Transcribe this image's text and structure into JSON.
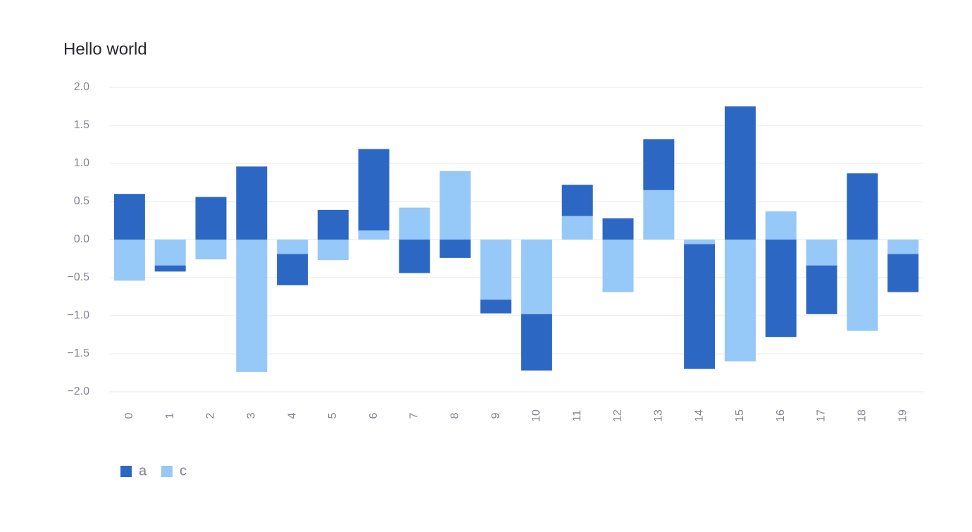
{
  "chart_data": {
    "type": "stacked-bar",
    "title": "Hello world",
    "categories": [
      "0",
      "1",
      "2",
      "3",
      "4",
      "5",
      "6",
      "7",
      "8",
      "9",
      "10",
      "11",
      "12",
      "13",
      "14",
      "15",
      "16",
      "17",
      "18",
      "19"
    ],
    "series": [
      {
        "name": "a",
        "color": "#2c67c4",
        "values": [
          0.6,
          -0.08,
          0.56,
          0.96,
          -0.41,
          0.39,
          1.07,
          -0.44,
          -0.24,
          -0.18,
          -0.74,
          0.41,
          0.28,
          0.67,
          -1.64,
          1.75,
          -1.28,
          -0.64,
          0.87,
          -0.5
        ]
      },
      {
        "name": "c",
        "color": "#96c8f8",
        "values": [
          -0.54,
          -0.34,
          -0.26,
          -1.74,
          -0.19,
          -0.27,
          0.12,
          0.42,
          0.9,
          -0.79,
          -0.98,
          0.31,
          -0.69,
          0.65,
          -0.06,
          -1.6,
          0.37,
          -0.34,
          -1.2,
          -0.19
        ]
      }
    ],
    "ylim": [
      -2,
      2
    ],
    "yticks": [
      {
        "value": -2,
        "label": "−2.0"
      },
      {
        "value": -1.5,
        "label": "−1.5"
      },
      {
        "value": -1,
        "label": "−1.0"
      },
      {
        "value": -0.5,
        "label": "−0.5"
      },
      {
        "value": 0,
        "label": "0.0"
      },
      {
        "value": 0.5,
        "label": "0.5"
      },
      {
        "value": 1,
        "label": "1.0"
      },
      {
        "value": 1.5,
        "label": "1.5"
      },
      {
        "value": 2,
        "label": "2.0"
      }
    ],
    "grid": true
  }
}
